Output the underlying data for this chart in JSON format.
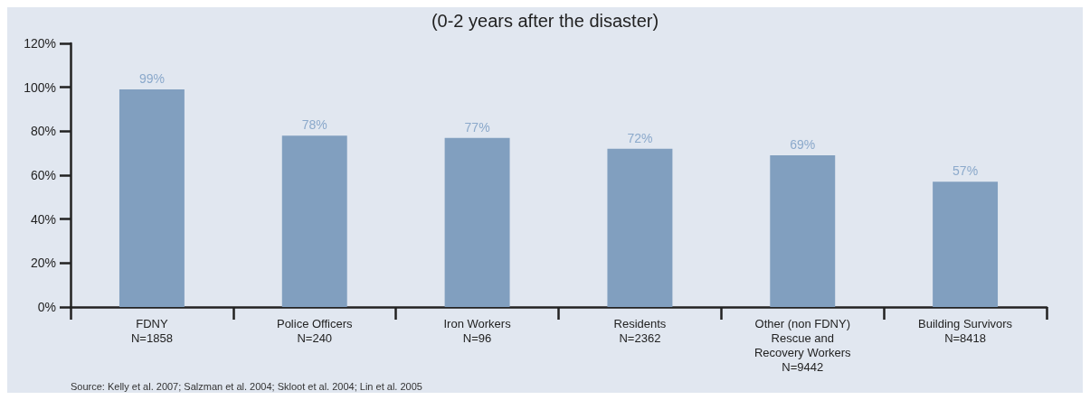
{
  "chart_data": {
    "type": "bar",
    "title": "(0-2 years after the disaster)",
    "categories": [
      "FDNY\nN=1858",
      "Police Officers\nN=240",
      "Iron Workers\nN=96",
      "Residents\nN=2362",
      "Other (non FDNY)\nRescue and\nRecovery Workers\nN=9442",
      "Building Survivors\nN=8418"
    ],
    "values": [
      99,
      78,
      77,
      72,
      69,
      57
    ],
    "color": "#819fbf",
    "ylim": [
      0,
      120
    ],
    "yticks": [
      {
        "value": 0,
        "label": "0%"
      },
      {
        "value": 20,
        "label": "20%"
      },
      {
        "value": 40,
        "label": "40%"
      },
      {
        "value": 60,
        "label": "60%"
      },
      {
        "value": 80,
        "label": "80%"
      },
      {
        "value": 100,
        "label": "100%"
      },
      {
        "value": 120,
        "label": "120%"
      }
    ],
    "data_labels": true,
    "value_labels": [
      "99%",
      "78%",
      "77%",
      "72%",
      "69%",
      "57%"
    ],
    "grid": false,
    "annotations": [
      "Source: Kelly et al. 2007; Salzman et al. 2004; Skloot et al. 2004; Lin et al. 2005"
    ]
  }
}
